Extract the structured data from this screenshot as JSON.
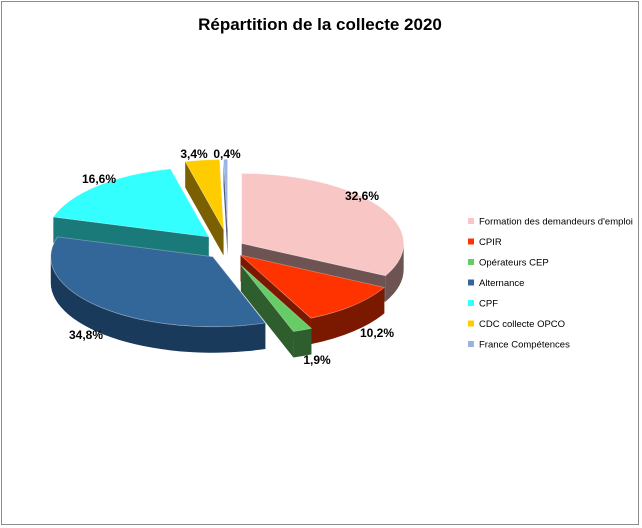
{
  "chart_data": {
    "type": "pie",
    "title": "Répartition de la collecte 2020",
    "categories": [
      "Formation des demandeurs d'emploi",
      "CPIR",
      "Opérateurs CEP",
      "Alternance",
      "CPF",
      "CDC collecte OPCO",
      "France Compétences"
    ],
    "values": [
      32.6,
      10.2,
      1.9,
      34.8,
      16.6,
      3.4,
      0.4
    ],
    "value_labels": [
      "32,6%",
      "10,2%",
      "1,9%",
      "34,8%",
      "16,6%",
      "3,4%",
      "0,4%"
    ],
    "colors": [
      "#F9C6C6",
      "#FF3300",
      "#66CC66",
      "#336699",
      "#33FFFF",
      "#FFCC00",
      "#99B3E6"
    ],
    "side_colors": [
      "#6E5353",
      "#7A1800",
      "#2E5E2E",
      "#1A3A5C",
      "#1A7A7A",
      "#7A6000",
      "#4A5A80"
    ],
    "exploded": true,
    "three_d": true,
    "legend_position": "right"
  }
}
